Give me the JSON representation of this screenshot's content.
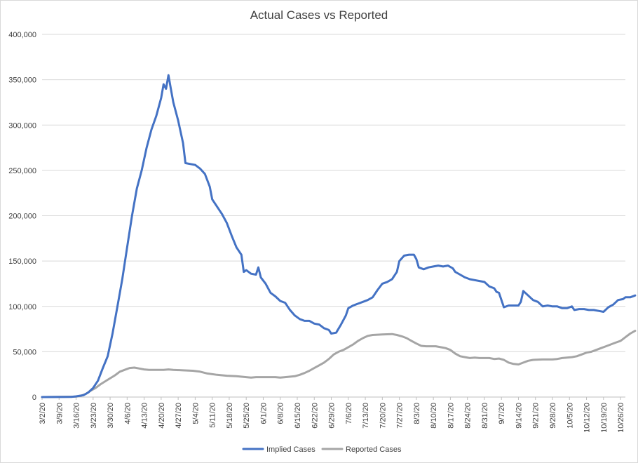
{
  "chart_data": {
    "type": "line",
    "title": "Actual Cases vs Reported",
    "xlabel": "",
    "ylabel": "",
    "ylim": [
      0,
      400000
    ],
    "yticks": [
      0,
      50000,
      100000,
      150000,
      200000,
      250000,
      300000,
      350000,
      400000
    ],
    "ytick_labels": [
      "0",
      "50,000",
      "100,000",
      "150,000",
      "200,000",
      "250,000",
      "300,000",
      "350,000",
      "400,000"
    ],
    "grid": true,
    "legend_position": "bottom",
    "x_start": "3/2/20",
    "x_end": "10/27/20",
    "x_tick_labels": [
      "3/2/20",
      "3/9/20",
      "3/16/20",
      "3/23/20",
      "3/30/20",
      "4/6/20",
      "4/13/20",
      "4/20/20",
      "4/27/20",
      "5/4/20",
      "5/11/20",
      "5/18/20",
      "5/25/20",
      "6/1/20",
      "6/8/20",
      "6/15/20",
      "6/22/20",
      "6/29/20",
      "7/6/20",
      "7/13/20",
      "7/20/20",
      "7/27/20",
      "8/3/20",
      "8/10/20",
      "8/17/20",
      "8/24/20",
      "8/31/20",
      "9/7/20",
      "9/14/20",
      "9/21/20",
      "9/28/20",
      "10/5/20",
      "10/12/20",
      "10/19/20",
      "10/26/20"
    ],
    "series": [
      {
        "name": "Implied Cases",
        "color": "#4472C4",
        "points": [
          [
            0,
            0
          ],
          [
            12,
            200
          ],
          [
            14,
            800
          ],
          [
            17,
            2000
          ],
          [
            19,
            5000
          ],
          [
            21,
            10000
          ],
          [
            23,
            18000
          ],
          [
            25,
            32000
          ],
          [
            27,
            45000
          ],
          [
            29,
            70000
          ],
          [
            31,
            100000
          ],
          [
            33,
            130000
          ],
          [
            35,
            165000
          ],
          [
            37,
            200000
          ],
          [
            39,
            230000
          ],
          [
            41,
            250000
          ],
          [
            43,
            275000
          ],
          [
            45,
            295000
          ],
          [
            47,
            310000
          ],
          [
            49,
            330000
          ],
          [
            50,
            345000
          ],
          [
            51,
            340000
          ],
          [
            52,
            355000
          ],
          [
            53,
            340000
          ],
          [
            54,
            325000
          ],
          [
            56,
            305000
          ],
          [
            58,
            280000
          ],
          [
            59,
            258000
          ],
          [
            61,
            257000
          ],
          [
            63,
            256000
          ],
          [
            65,
            252000
          ],
          [
            67,
            246000
          ],
          [
            69,
            232000
          ],
          [
            70,
            218000
          ],
          [
            72,
            210000
          ],
          [
            74,
            202000
          ],
          [
            76,
            192000
          ],
          [
            78,
            178000
          ],
          [
            80,
            165000
          ],
          [
            82,
            157000
          ],
          [
            83,
            138000
          ],
          [
            84,
            140000
          ],
          [
            86,
            136000
          ],
          [
            88,
            135000
          ],
          [
            89,
            143000
          ],
          [
            90,
            132000
          ],
          [
            92,
            125000
          ],
          [
            94,
            115000
          ],
          [
            96,
            111000
          ],
          [
            98,
            106000
          ],
          [
            100,
            104000
          ],
          [
            102,
            96000
          ],
          [
            104,
            90000
          ],
          [
            106,
            86000
          ],
          [
            108,
            84000
          ],
          [
            110,
            84000
          ],
          [
            112,
            81000
          ],
          [
            114,
            80000
          ],
          [
            116,
            76000
          ],
          [
            118,
            74000
          ],
          [
            119,
            70000
          ],
          [
            121,
            71000
          ],
          [
            123,
            80000
          ],
          [
            125,
            90000
          ],
          [
            126,
            98000
          ],
          [
            128,
            101000
          ],
          [
            130,
            103000
          ],
          [
            132,
            105000
          ],
          [
            134,
            107000
          ],
          [
            136,
            110000
          ],
          [
            138,
            118000
          ],
          [
            140,
            125000
          ],
          [
            142,
            127000
          ],
          [
            144,
            130000
          ],
          [
            146,
            138000
          ],
          [
            147,
            150000
          ],
          [
            149,
            156000
          ],
          [
            151,
            157000
          ],
          [
            153,
            157000
          ],
          [
            154,
            152000
          ],
          [
            155,
            143000
          ],
          [
            157,
            141000
          ],
          [
            159,
            143000
          ],
          [
            161,
            144000
          ],
          [
            163,
            145000
          ],
          [
            165,
            144000
          ],
          [
            167,
            145000
          ],
          [
            169,
            142000
          ],
          [
            170,
            138000
          ],
          [
            172,
            135000
          ],
          [
            174,
            132000
          ],
          [
            176,
            130000
          ],
          [
            178,
            129000
          ],
          [
            180,
            128000
          ],
          [
            182,
            127000
          ],
          [
            184,
            122000
          ],
          [
            186,
            120000
          ],
          [
            187,
            116000
          ],
          [
            188,
            115000
          ],
          [
            190,
            99000
          ],
          [
            192,
            101000
          ],
          [
            194,
            101000
          ],
          [
            196,
            101000
          ],
          [
            197,
            105000
          ],
          [
            198,
            117000
          ],
          [
            200,
            112000
          ],
          [
            202,
            107000
          ],
          [
            204,
            105000
          ],
          [
            206,
            100000
          ],
          [
            208,
            101000
          ],
          [
            210,
            100000
          ],
          [
            212,
            100000
          ],
          [
            214,
            98000
          ],
          [
            216,
            98000
          ],
          [
            218,
            100000
          ],
          [
            219,
            96000
          ],
          [
            221,
            97000
          ],
          [
            223,
            97000
          ],
          [
            225,
            96000
          ],
          [
            227,
            96000
          ],
          [
            229,
            95000
          ],
          [
            231,
            94000
          ],
          [
            233,
            99000
          ],
          [
            235,
            102000
          ],
          [
            237,
            107000
          ],
          [
            239,
            108000
          ],
          [
            240,
            110000
          ],
          [
            242,
            110000
          ],
          [
            244,
            112000
          ]
        ]
      },
      {
        "name": "Reported Cases",
        "color": "#A5A5A5",
        "points": [
          [
            0,
            0
          ],
          [
            14,
            500
          ],
          [
            16,
            1500
          ],
          [
            18,
            3500
          ],
          [
            20,
            7000
          ],
          [
            22,
            10000
          ],
          [
            24,
            14000
          ],
          [
            27,
            19000
          ],
          [
            30,
            24000
          ],
          [
            32,
            28000
          ],
          [
            34,
            30000
          ],
          [
            36,
            32000
          ],
          [
            38,
            32500
          ],
          [
            40,
            31500
          ],
          [
            42,
            30500
          ],
          [
            44,
            30000
          ],
          [
            50,
            30000
          ],
          [
            52,
            30500
          ],
          [
            54,
            30000
          ],
          [
            58,
            29500
          ],
          [
            62,
            29000
          ],
          [
            65,
            28000
          ],
          [
            68,
            26000
          ],
          [
            72,
            24500
          ],
          [
            76,
            23500
          ],
          [
            80,
            23000
          ],
          [
            84,
            22000
          ],
          [
            86,
            21500
          ],
          [
            88,
            22000
          ],
          [
            96,
            22000
          ],
          [
            98,
            21500
          ],
          [
            100,
            22000
          ],
          [
            104,
            23000
          ],
          [
            106,
            24500
          ],
          [
            108,
            26500
          ],
          [
            110,
            29000
          ],
          [
            112,
            32000
          ],
          [
            114,
            35000
          ],
          [
            116,
            38000
          ],
          [
            118,
            42000
          ],
          [
            120,
            47000
          ],
          [
            122,
            50000
          ],
          [
            124,
            52000
          ],
          [
            126,
            55000
          ],
          [
            128,
            58000
          ],
          [
            130,
            62000
          ],
          [
            132,
            65000
          ],
          [
            134,
            67500
          ],
          [
            136,
            68500
          ],
          [
            140,
            69000
          ],
          [
            144,
            69500
          ],
          [
            146,
            68500
          ],
          [
            148,
            67000
          ],
          [
            150,
            65000
          ],
          [
            152,
            62000
          ],
          [
            154,
            59000
          ],
          [
            156,
            56500
          ],
          [
            158,
            56000
          ],
          [
            162,
            56000
          ],
          [
            164,
            55000
          ],
          [
            166,
            54000
          ],
          [
            168,
            52000
          ],
          [
            170,
            48000
          ],
          [
            172,
            45000
          ],
          [
            174,
            44000
          ],
          [
            176,
            43000
          ],
          [
            178,
            43500
          ],
          [
            180,
            43000
          ],
          [
            184,
            43000
          ],
          [
            186,
            42000
          ],
          [
            188,
            42500
          ],
          [
            190,
            41000
          ],
          [
            192,
            38000
          ],
          [
            194,
            36500
          ],
          [
            196,
            36000
          ],
          [
            198,
            38000
          ],
          [
            200,
            40000
          ],
          [
            202,
            41000
          ],
          [
            206,
            41500
          ],
          [
            210,
            41500
          ],
          [
            212,
            42000
          ],
          [
            214,
            43000
          ],
          [
            216,
            43500
          ],
          [
            218,
            44000
          ],
          [
            220,
            45000
          ],
          [
            222,
            47000
          ],
          [
            224,
            49000
          ],
          [
            226,
            50000
          ],
          [
            228,
            52000
          ],
          [
            230,
            54000
          ],
          [
            232,
            56000
          ],
          [
            234,
            58000
          ],
          [
            236,
            60000
          ],
          [
            238,
            62000
          ],
          [
            240,
            66000
          ],
          [
            242,
            70000
          ],
          [
            244,
            73000
          ]
        ]
      }
    ]
  }
}
